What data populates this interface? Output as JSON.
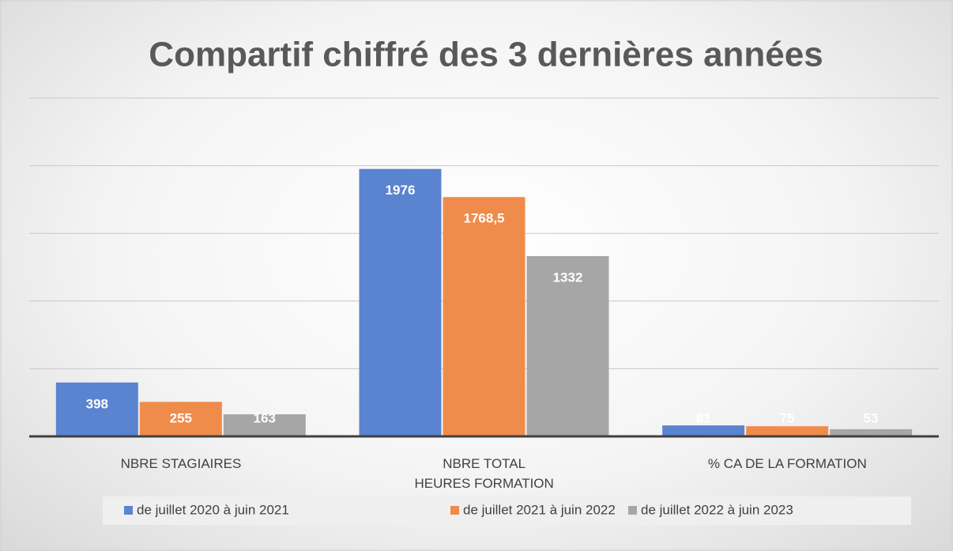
{
  "chart_data": {
    "type": "bar",
    "title": "Compartif chiffré des 3 dernières années",
    "categories": [
      "NBRE STAGIAIRES",
      "NBRE  TOTAL\nHEURES FORMATION",
      "% CA DE LA FORMATION"
    ],
    "series": [
      {
        "name": "de  juillet 2020 à juin 2021",
        "color": "#5b84d0",
        "values": [
          398,
          1976,
          81
        ]
      },
      {
        "name": "de  juillet 2021 à juin 2022",
        "color": "#ef8c4b",
        "values": [
          255,
          1768.5,
          75
        ],
        "value_labels": [
          "255",
          "1768,5",
          "75"
        ]
      },
      {
        "name": "de juillet 2022 à juin 2023",
        "color": "#a6a6a6",
        "values": [
          163,
          1332,
          53
        ]
      }
    ],
    "ylim": [
      0,
      2500
    ],
    "yticks": [
      0,
      500,
      1000,
      1500,
      2000,
      2500
    ],
    "grid": true,
    "legend": "bottom"
  }
}
